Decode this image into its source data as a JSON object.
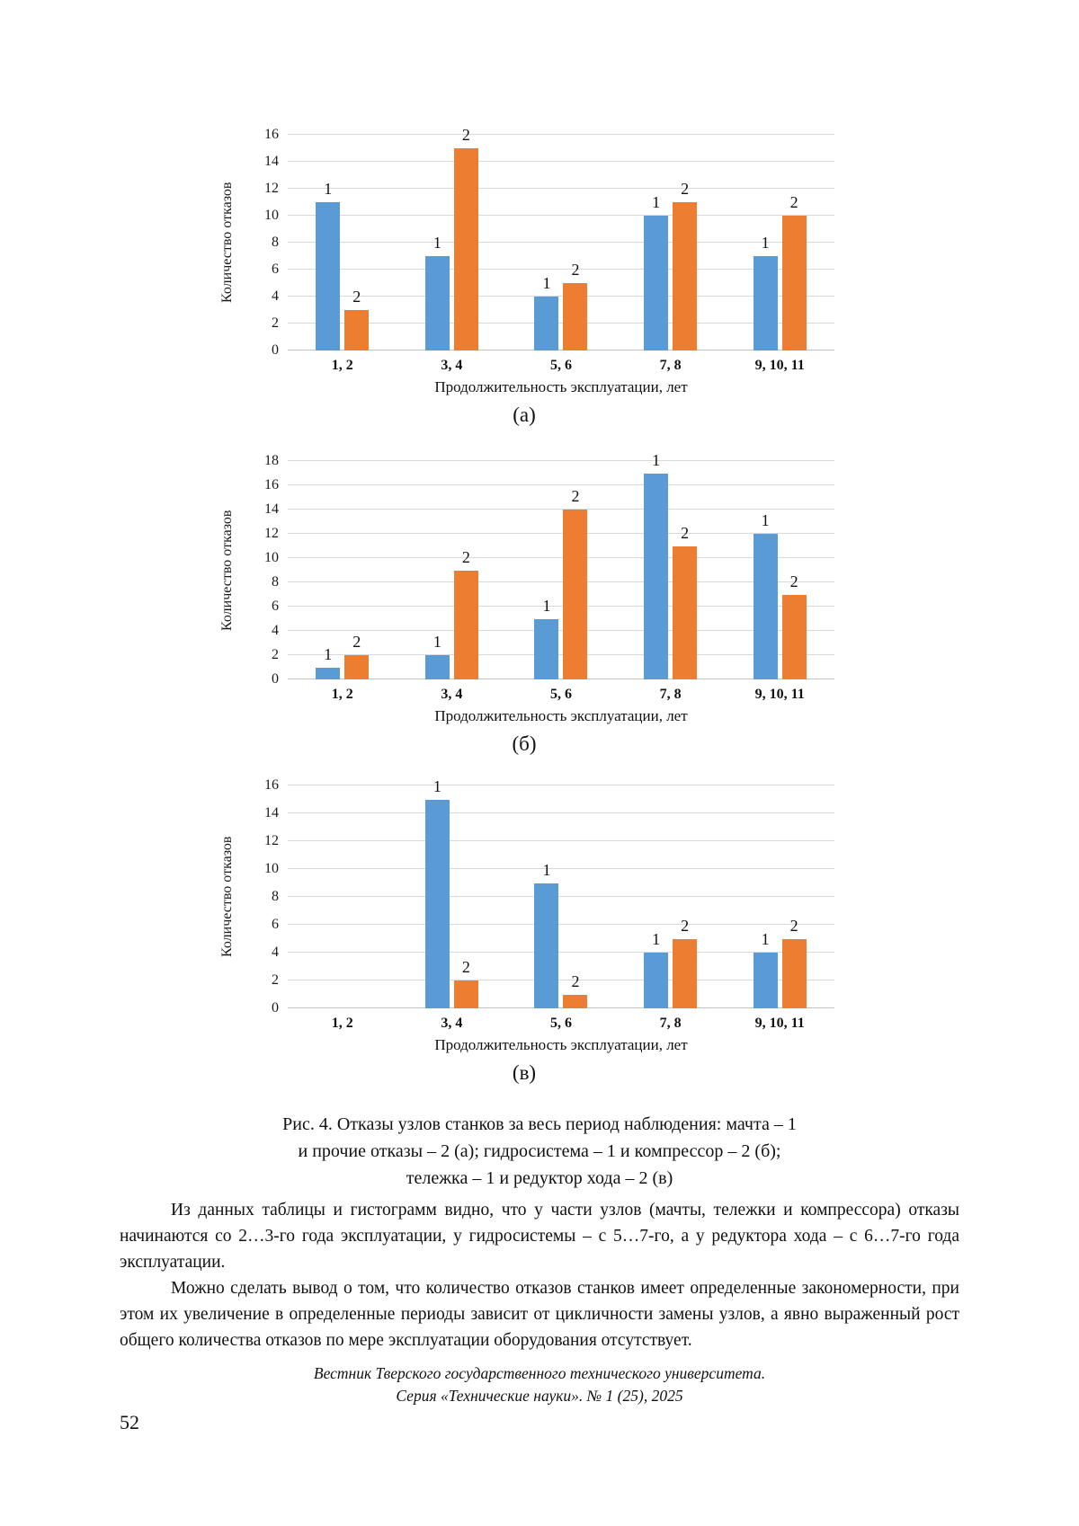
{
  "page_number": "52",
  "figure": {
    "caption_lines": [
      "Рис. 4. Отказы узлов станков за весь период наблюдения: мачта – 1",
      "и прочие отказы – 2 (а); гидросистема – 1 и компрессор – 2 (б);",
      "тележка – 1 и редуктор хода – 2 (в)"
    ]
  },
  "paragraphs": [
    "Из данных таблицы и гистограмм видно, что у части узлов (мачты, тележки и компрессора) отказы начинаются со 2…3-го года эксплуатации, у гидросистемы – с 5…7-го, а у редуктора хода – с 6…7-го года эксплуатации.",
    "Можно сделать вывод о том, что количество отказов станков имеет определенные закономерности, при этом их увеличение в определенные периоды зависит от цикличности замены узлов, а явно выраженный рост общего количества отказов по мере эксплуатации оборудования отсутствует."
  ],
  "footer": {
    "line1": "Вестник Тверского государственного технического университета.",
    "line2": "Серия «Технические науки». № 1 (25), 2025"
  },
  "colors": {
    "series1": "#5B9BD5",
    "series2": "#ED7D31",
    "gridline": "#D9D9D9"
  },
  "chart_data": [
    {
      "type": "bar",
      "letter": "(а)",
      "categories": [
        "1, 2",
        "3, 4",
        "5, 6",
        "7, 8",
        "9, 10, 11"
      ],
      "series": [
        {
          "name": "мачта",
          "label": "1",
          "color": "#5B9BD5",
          "values": [
            11,
            7,
            4,
            10,
            7
          ]
        },
        {
          "name": "прочие отказы",
          "label": "2",
          "color": "#ED7D31",
          "values": [
            3,
            15,
            5,
            11,
            10
          ]
        }
      ],
      "xlabel": "Продолжительность эксплуатации, лет",
      "ylabel": "Количество отказов",
      "ylim": [
        0,
        16
      ],
      "ytick_step": 2,
      "grid": true,
      "legend": "none"
    },
    {
      "type": "bar",
      "letter": "(б)",
      "categories": [
        "1, 2",
        "3, 4",
        "5, 6",
        "7, 8",
        "9, 10, 11"
      ],
      "series": [
        {
          "name": "гидросистема",
          "label": "1",
          "color": "#5B9BD5",
          "values": [
            1,
            2,
            5,
            17,
            12
          ]
        },
        {
          "name": "компрессор",
          "label": "2",
          "color": "#ED7D31",
          "values": [
            2,
            9,
            14,
            11,
            7
          ]
        }
      ],
      "xlabel": "Продолжительность эксплуатации, лет",
      "ylabel": "Количество отказов",
      "ylim": [
        0,
        18
      ],
      "ytick_step": 2,
      "grid": true,
      "legend": "none"
    },
    {
      "type": "bar",
      "letter": "(в)",
      "categories": [
        "1, 2",
        "3, 4",
        "5, 6",
        "7, 8",
        "9, 10, 11"
      ],
      "series": [
        {
          "name": "тележка",
          "label": "1",
          "color": "#5B9BD5",
          "values": [
            0,
            15,
            9,
            4,
            4
          ]
        },
        {
          "name": "редуктор хода",
          "label": "2",
          "color": "#ED7D31",
          "values": [
            0,
            2,
            1,
            5,
            5
          ]
        }
      ],
      "xlabel": "Продолжительность эксплуатации, лет",
      "ylabel": "Количество отказов",
      "ylim": [
        0,
        16
      ],
      "ytick_step": 2,
      "grid": true,
      "legend": "none"
    }
  ]
}
